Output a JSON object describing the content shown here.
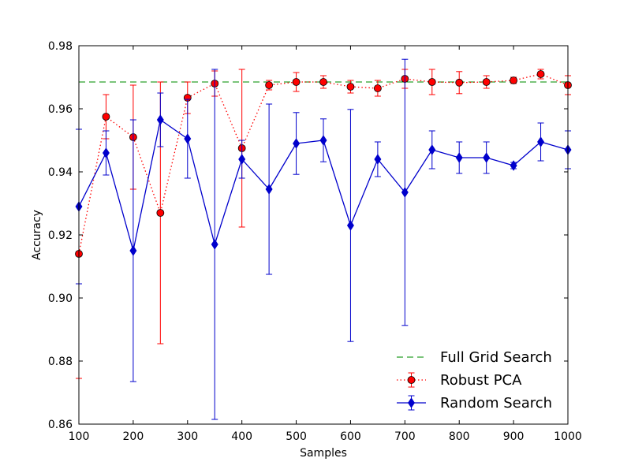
{
  "chart_data": {
    "type": "line",
    "xlabel": "Samples",
    "ylabel": "Accuracy",
    "xlim": [
      100,
      1000
    ],
    "ylim": [
      0.86,
      0.98
    ],
    "xticks": [
      "100",
      "200",
      "300",
      "400",
      "500",
      "600",
      "700",
      "800",
      "900",
      "1000"
    ],
    "yticks": [
      "0.86",
      "0.88",
      "0.90",
      "0.92",
      "0.94",
      "0.96",
      "0.98"
    ],
    "grid": false,
    "legend_position": "lower-right",
    "series": [
      {
        "name": "Full Grid Search",
        "style": "dashed",
        "color": "#2ca02c",
        "x": [
          100,
          1000
        ],
        "y": [
          0.9685,
          0.9685
        ]
      },
      {
        "name": "Robust PCA",
        "style": "dotted",
        "marker": "circle",
        "color": "#ff0000",
        "x": [
          100,
          150,
          200,
          250,
          300,
          350,
          400,
          450,
          500,
          550,
          600,
          650,
          700,
          750,
          800,
          850,
          900,
          950,
          1000
        ],
        "y": [
          0.914,
          0.9575,
          0.951,
          0.927,
          0.9635,
          0.968,
          0.9475,
          0.9675,
          0.9685,
          0.9685,
          0.967,
          0.9665,
          0.9695,
          0.9685,
          0.9683,
          0.9685,
          0.969,
          0.971,
          0.9675
        ],
        "err": [
          0.0395,
          0.007,
          0.0165,
          0.0415,
          0.005,
          0.004,
          0.025,
          0.0015,
          0.003,
          0.002,
          0.002,
          0.0025,
          0.003,
          0.004,
          0.0035,
          0.002,
          0.001,
          0.0015,
          0.003
        ]
      },
      {
        "name": "Random Search",
        "style": "solid",
        "marker": "diamond",
        "color": "#0000cc",
        "x": [
          100,
          150,
          200,
          250,
          300,
          350,
          400,
          450,
          500,
          550,
          600,
          650,
          700,
          750,
          800,
          850,
          900,
          950,
          1000
        ],
        "y": [
          0.929,
          0.946,
          0.915,
          0.9565,
          0.9505,
          0.917,
          0.944,
          0.9345,
          0.949,
          0.95,
          0.923,
          0.944,
          0.9335,
          0.947,
          0.9445,
          0.9445,
          0.942,
          0.9495,
          0.947
        ],
        "err": [
          0.0245,
          0.007,
          0.0415,
          0.0085,
          0.0125,
          0.0555,
          0.006,
          0.027,
          0.0098,
          0.0068,
          0.0368,
          0.0055,
          0.0422,
          0.006,
          0.005,
          0.005,
          0.001,
          0.006,
          0.006
        ]
      }
    ]
  }
}
